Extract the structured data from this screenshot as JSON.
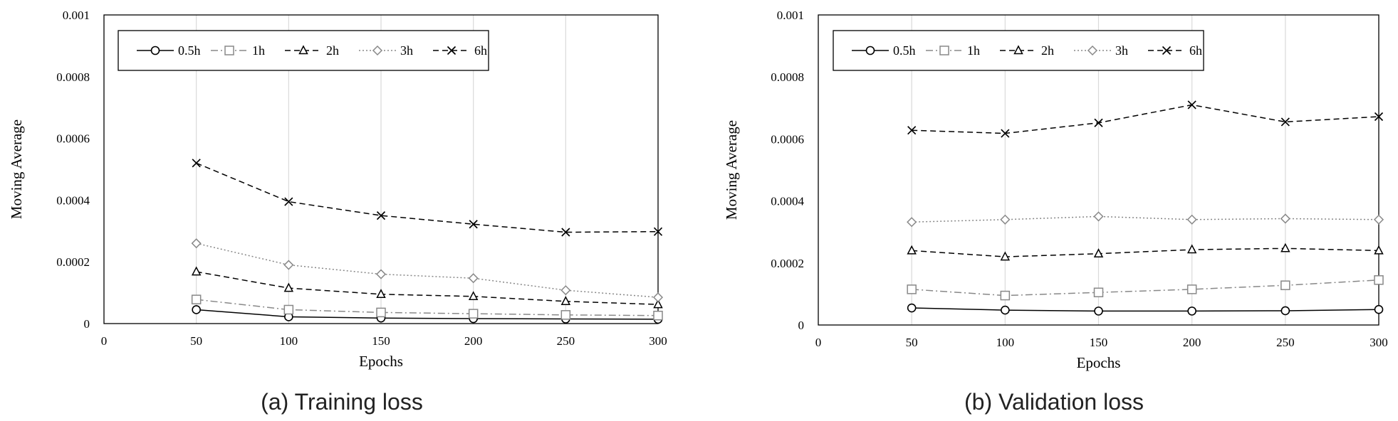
{
  "chart_data": [
    {
      "type": "line",
      "caption": "(a) Training loss",
      "xlabel": "Epochs",
      "ylabel": "Moving Average",
      "xlim": [
        0,
        300
      ],
      "ylim": [
        0,
        0.001
      ],
      "xticks": [
        "0",
        "50",
        "100",
        "150",
        "200",
        "250",
        "300"
      ],
      "yticks": [
        "0",
        "0.0002",
        "0.0004",
        "0.0006",
        "0.0008",
        "0.001"
      ],
      "grid": "vertical",
      "legend_position": "top-left",
      "x": [
        50,
        100,
        150,
        200,
        250,
        300
      ],
      "series": [
        {
          "name": "0.5h",
          "marker": "circle",
          "dash": "solid",
          "color": "#000000",
          "values": [
            4.5e-05,
            2.2e-05,
            1.8e-05,
            1.6e-05,
            1.5e-05,
            1.4e-05
          ]
        },
        {
          "name": "1h",
          "marker": "square",
          "dash": "dashdot",
          "color": "#888888",
          "values": [
            7.8e-05,
            4.5e-05,
            3.6e-05,
            3.2e-05,
            2.8e-05,
            2.6e-05
          ]
        },
        {
          "name": "2h",
          "marker": "triangle",
          "dash": "dashed",
          "color": "#000000",
          "values": [
            0.000168,
            0.000115,
            9.5e-05,
            8.8e-05,
            7.2e-05,
            6.2e-05
          ]
        },
        {
          "name": "3h",
          "marker": "diamond",
          "dash": "dotted",
          "color": "#888888",
          "values": [
            0.00026,
            0.00019,
            0.00016,
            0.000147,
            0.000108,
            8.5e-05
          ]
        },
        {
          "name": "6h",
          "marker": "x",
          "dash": "dashed",
          "color": "#000000",
          "values": [
            0.00052,
            0.000395,
            0.00035,
            0.000322,
            0.000296,
            0.000298
          ]
        }
      ]
    },
    {
      "type": "line",
      "caption": "(b) Validation loss",
      "xlabel": "Epochs",
      "ylabel": "Moving Average",
      "xlim": [
        0,
        300
      ],
      "ylim": [
        0,
        0.001
      ],
      "xticks": [
        "0",
        "50",
        "100",
        "150",
        "200",
        "250",
        "300"
      ],
      "yticks": [
        "0",
        "0.0002",
        "0.0004",
        "0.0006",
        "0.0008",
        "0.001"
      ],
      "grid": "vertical",
      "legend_position": "top-left",
      "x": [
        50,
        100,
        150,
        200,
        250,
        300
      ],
      "series": [
        {
          "name": "0.5h",
          "marker": "circle",
          "dash": "solid",
          "color": "#000000",
          "values": [
            5.5e-05,
            4.8e-05,
            4.5e-05,
            4.5e-05,
            4.6e-05,
            5e-05
          ]
        },
        {
          "name": "1h",
          "marker": "square",
          "dash": "dashdot",
          "color": "#888888",
          "values": [
            0.000115,
            9.5e-05,
            0.000105,
            0.000115,
            0.000128,
            0.000145
          ]
        },
        {
          "name": "2h",
          "marker": "triangle",
          "dash": "dashed",
          "color": "#000000",
          "values": [
            0.00024,
            0.00022,
            0.00023,
            0.000243,
            0.000247,
            0.00024
          ]
        },
        {
          "name": "3h",
          "marker": "diamond",
          "dash": "dotted",
          "color": "#888888",
          "values": [
            0.000332,
            0.00034,
            0.00035,
            0.00034,
            0.000343,
            0.00034
          ]
        },
        {
          "name": "6h",
          "marker": "x",
          "dash": "dashed",
          "color": "#000000",
          "values": [
            0.000628,
            0.000618,
            0.000652,
            0.00071,
            0.000655,
            0.000672
          ]
        }
      ]
    }
  ]
}
